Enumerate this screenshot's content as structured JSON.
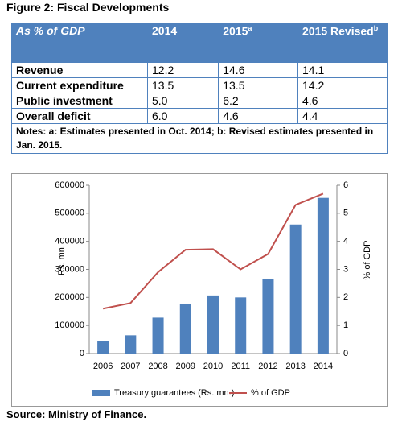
{
  "figure_title": "Figure 2: Fiscal Developments",
  "table": {
    "header": [
      {
        "text": "As % of GDP"
      },
      {
        "text": "2014"
      },
      {
        "text": "2015",
        "sup": "a"
      },
      {
        "text": "2015 Revised",
        "sup": "b"
      }
    ],
    "rows": [
      [
        "Revenue",
        "12.2",
        "14.6",
        "14.1"
      ],
      [
        "Current expenditure",
        "13.5",
        "13.5",
        "14.2"
      ],
      [
        "Public investment",
        "5.0",
        "6.2",
        "4.6"
      ],
      [
        "Overall deficit",
        "6.0",
        "4.6",
        "4.4"
      ]
    ],
    "notes": "Notes: a: Estimates presented in Oct. 2014;  b: Revised estimates presented in Jan. 2015."
  },
  "chart_data": {
    "type": "bar-line",
    "categories": [
      "2006",
      "2007",
      "2008",
      "2009",
      "2010",
      "2011",
      "2012",
      "2013",
      "2014"
    ],
    "series": [
      {
        "name": "Treasury guarantees (Rs. mn.)",
        "color": "#4f81bd",
        "type": "bar",
        "values": [
          45000,
          65000,
          128000,
          178000,
          207000,
          200000,
          267000,
          460000,
          555000
        ]
      },
      {
        "name": "% of GDP",
        "color": "#c0504d",
        "type": "line",
        "axis": "y2",
        "values": [
          1.6,
          1.8,
          2.9,
          3.7,
          3.72,
          3.0,
          3.55,
          5.3,
          5.7
        ]
      }
    ],
    "ylabel": "Rs. mn.",
    "y2label": "% of GDP",
    "ylim": [
      0,
      600000
    ],
    "yticks": [
      0,
      100000,
      200000,
      300000,
      400000,
      500000,
      600000
    ],
    "y2lim": [
      0,
      6
    ],
    "y2ticks": [
      0,
      1,
      2,
      3,
      4,
      5,
      6
    ],
    "legend": "bottom"
  },
  "source": "Source: Ministry of Finance."
}
